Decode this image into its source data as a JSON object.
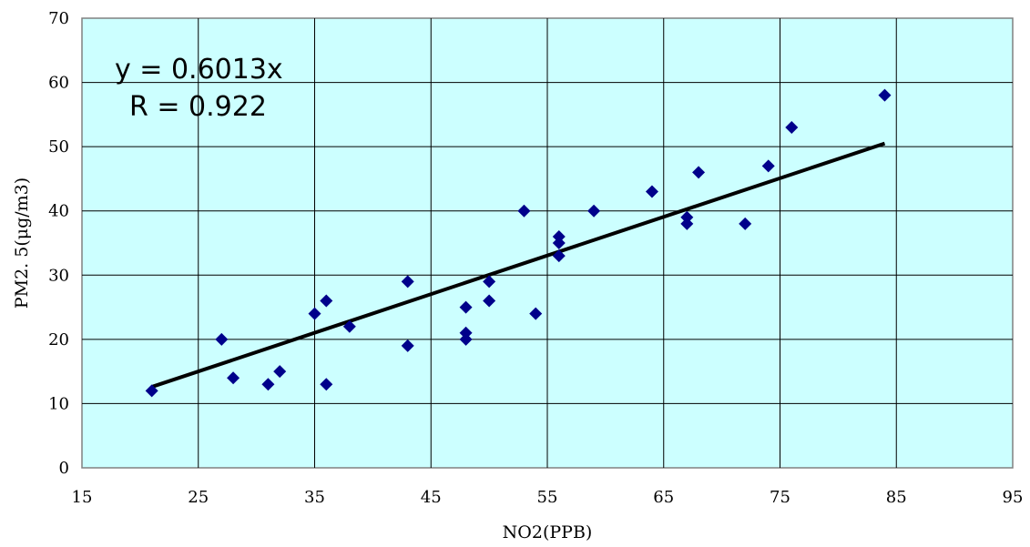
{
  "chart_data": {
    "type": "scatter",
    "xlabel": "NO2(PPB)",
    "ylabel": "PM2. 5(μg/m3)",
    "xlim": [
      15,
      95
    ],
    "ylim": [
      0,
      70
    ],
    "x_ticks": [
      "15",
      "25",
      "35",
      "45",
      "55",
      "65",
      "75",
      "85",
      "95"
    ],
    "y_ticks": [
      "0",
      "10",
      "20",
      "30",
      "40",
      "50",
      "60",
      "70"
    ],
    "grid": true,
    "legend": "none",
    "annotations": [
      "y = 0.6013x",
      "R = 0.922"
    ],
    "trendline": {
      "x": [
        21,
        84
      ],
      "y": [
        12.6,
        50.5
      ]
    },
    "points": [
      [
        21,
        12
      ],
      [
        27,
        20
      ],
      [
        28,
        14
      ],
      [
        31,
        13
      ],
      [
        32,
        15
      ],
      [
        35,
        24
      ],
      [
        36,
        26
      ],
      [
        36,
        13
      ],
      [
        38,
        22
      ],
      [
        43,
        29
      ],
      [
        43,
        19
      ],
      [
        48,
        25
      ],
      [
        48,
        21
      ],
      [
        48,
        20
      ],
      [
        50,
        29
      ],
      [
        50,
        26
      ],
      [
        53,
        40
      ],
      [
        54,
        24
      ],
      [
        56,
        36
      ],
      [
        56,
        35
      ],
      [
        56,
        33
      ],
      [
        59,
        40
      ],
      [
        64,
        43
      ],
      [
        67,
        39
      ],
      [
        67,
        38
      ],
      [
        68,
        46
      ],
      [
        72,
        38
      ],
      [
        74,
        47
      ],
      [
        76,
        53
      ],
      [
        84,
        58
      ]
    ]
  },
  "colors": {
    "plot_background": "#ccffff",
    "marker": "#00008b",
    "trendline": "#000000",
    "grid": "#000000"
  }
}
